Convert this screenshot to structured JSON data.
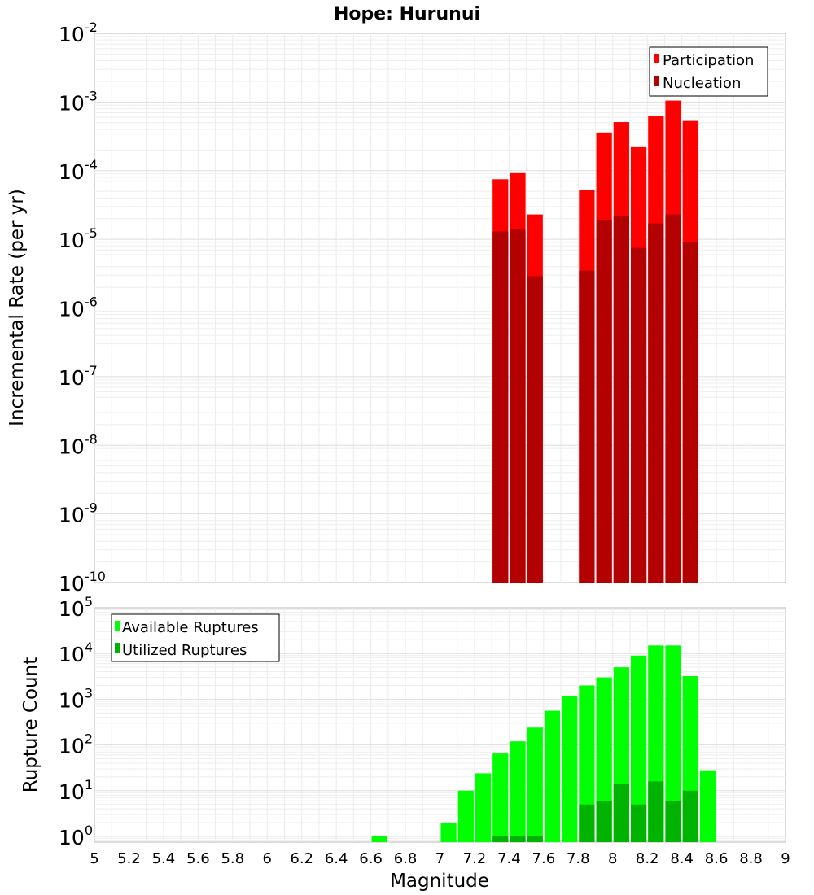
{
  "chart_data": {
    "type": "bar",
    "title": "Hope: Hurunui",
    "xlabel": "Magnitude",
    "xlim": [
      5,
      9
    ],
    "bin_width": 0.1,
    "x_ticks": [
      "5",
      "5.2",
      "5.4",
      "5.6",
      "5.8",
      "6",
      "6.2",
      "6.4",
      "6.6",
      "6.8",
      "7",
      "7.2",
      "7.4",
      "7.6",
      "7.8",
      "8",
      "8.2",
      "8.4",
      "8.6",
      "8.8",
      "9"
    ],
    "panels": [
      {
        "ylabel": "Incremental Rate (per yr)",
        "y_scale": "log",
        "ylim": [
          1e-10,
          0.01
        ],
        "y_tick_exponents": [
          "-10",
          "-9",
          "-8",
          "-7",
          "-6",
          "-5",
          "-4",
          "-3",
          "-2"
        ],
        "legend_position": "top-right",
        "series": [
          {
            "name": "Participation",
            "color": "#ff0000",
            "x": [
              7.35,
              7.45,
              7.55,
              7.85,
              7.95,
              8.05,
              8.15,
              8.25,
              8.35,
              8.45
            ],
            "values": [
              7.5e-05,
              9.2e-05,
              2.3e-05,
              5.3e-05,
              0.00036,
              0.00051,
              0.00022,
              0.00062,
              0.00105,
              0.00053
            ]
          },
          {
            "name": "Nucleation",
            "color": "#b30000",
            "x": [
              7.35,
              7.45,
              7.55,
              7.85,
              7.95,
              8.05,
              8.15,
              8.25,
              8.35,
              8.45
            ],
            "values": [
              1.3e-05,
              1.4e-05,
              2.9e-06,
              3.5e-06,
              1.9e-05,
              2.2e-05,
              7.5e-06,
              1.7e-05,
              2.3e-05,
              9.2e-06
            ]
          }
        ]
      },
      {
        "ylabel": "Rupture Count",
        "y_scale": "log",
        "ylim": [
          0.75,
          100000
        ],
        "y_tick_exponents": [
          "0",
          "1",
          "2",
          "3",
          "4",
          "5"
        ],
        "legend_position": "top-left",
        "series": [
          {
            "name": "Available Ruptures",
            "color": "#00ff00",
            "x": [
              6.65,
              7.05,
              7.15,
              7.25,
              7.35,
              7.45,
              7.55,
              7.65,
              7.75,
              7.85,
              7.95,
              8.05,
              8.15,
              8.25,
              8.35,
              8.45,
              8.55
            ],
            "values": [
              1,
              2,
              10,
              24,
              65,
              120,
              240,
              560,
              1200,
              2000,
              3000,
              5000,
              9000,
              15000,
              15000,
              3200,
              28
            ]
          },
          {
            "name": "Utilized Ruptures",
            "color": "#00b300",
            "x": [
              7.35,
              7.45,
              7.55,
              7.85,
              7.95,
              8.05,
              8.15,
              8.25,
              8.35,
              8.45
            ],
            "values": [
              1,
              1,
              1,
              5,
              6,
              14,
              5,
              16,
              6,
              10
            ]
          }
        ]
      }
    ]
  }
}
